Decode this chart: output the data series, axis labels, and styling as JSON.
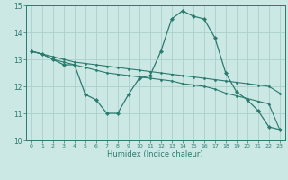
{
  "xlabel": "Humidex (Indice chaleur)",
  "x": [
    0,
    1,
    2,
    3,
    4,
    5,
    6,
    7,
    8,
    9,
    10,
    11,
    12,
    13,
    14,
    15,
    16,
    17,
    18,
    19,
    20,
    21,
    22,
    23
  ],
  "line1": [
    13.3,
    13.2,
    13.0,
    12.8,
    12.8,
    11.7,
    11.5,
    11.0,
    11.0,
    11.7,
    12.3,
    12.4,
    13.3,
    14.5,
    14.8,
    14.6,
    14.5,
    13.8,
    12.5,
    11.8,
    11.5,
    11.1,
    10.5,
    10.4
  ],
  "line2": [
    13.3,
    13.2,
    13.1,
    13.0,
    12.9,
    12.85,
    12.8,
    12.75,
    12.7,
    12.65,
    12.6,
    12.55,
    12.5,
    12.45,
    12.4,
    12.35,
    12.3,
    12.25,
    12.2,
    12.15,
    12.1,
    12.05,
    12.0,
    11.75
  ],
  "line3": [
    13.3,
    13.2,
    13.0,
    12.9,
    12.8,
    12.7,
    12.6,
    12.5,
    12.45,
    12.4,
    12.35,
    12.3,
    12.25,
    12.2,
    12.1,
    12.05,
    12.0,
    11.9,
    11.75,
    11.65,
    11.55,
    11.45,
    11.35,
    10.4
  ],
  "bg_color": "#cce8e4",
  "grid_color": "#aacfcc",
  "line_color": "#2a7a6e",
  "ylim": [
    10,
    15
  ],
  "yticks": [
    10,
    11,
    12,
    13,
    14,
    15
  ]
}
